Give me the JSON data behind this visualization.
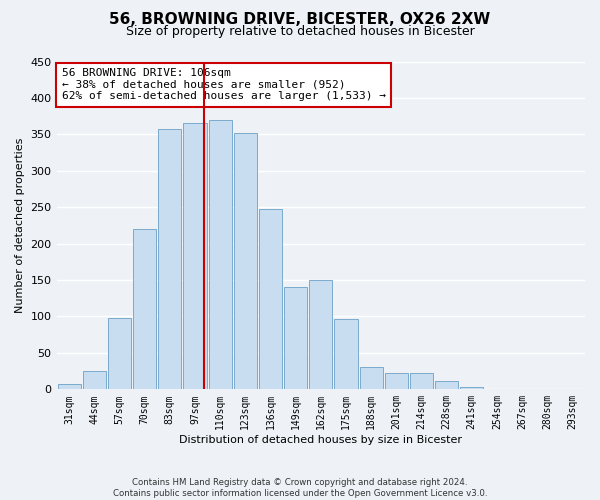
{
  "title": "56, BROWNING DRIVE, BICESTER, OX26 2XW",
  "subtitle": "Size of property relative to detached houses in Bicester",
  "xlabel": "Distribution of detached houses by size in Bicester",
  "ylabel": "Number of detached properties",
  "categories": [
    "31sqm",
    "44sqm",
    "57sqm",
    "70sqm",
    "83sqm",
    "97sqm",
    "110sqm",
    "123sqm",
    "136sqm",
    "149sqm",
    "162sqm",
    "175sqm",
    "188sqm",
    "201sqm",
    "214sqm",
    "228sqm",
    "241sqm",
    "254sqm",
    "267sqm",
    "280sqm",
    "293sqm"
  ],
  "values": [
    8,
    25,
    98,
    220,
    358,
    365,
    370,
    352,
    248,
    140,
    150,
    96,
    30,
    22,
    22,
    11,
    3,
    1,
    1,
    1,
    1
  ],
  "bar_color": "#c8ddef",
  "bar_edge_color": "#7aaacc",
  "vline_x": 5.35,
  "vline_color": "#cc0000",
  "annotation_text": "56 BROWNING DRIVE: 106sqm\n← 38% of detached houses are smaller (952)\n62% of semi-detached houses are larger (1,533) →",
  "annotation_box_color": "white",
  "annotation_box_edge": "#cc0000",
  "ylim": [
    0,
    450
  ],
  "yticks": [
    0,
    50,
    100,
    150,
    200,
    250,
    300,
    350,
    400,
    450
  ],
  "footer_line1": "Contains HM Land Registry data © Crown copyright and database right 2024.",
  "footer_line2": "Contains public sector information licensed under the Open Government Licence v3.0.",
  "bg_color": "#eef2f7",
  "grid_color": "#ffffff",
  "title_fontsize": 11,
  "subtitle_fontsize": 9,
  "annotation_fontsize": 8,
  "tick_fontsize": 7,
  "ylabel_fontsize": 8,
  "xlabel_fontsize": 8
}
